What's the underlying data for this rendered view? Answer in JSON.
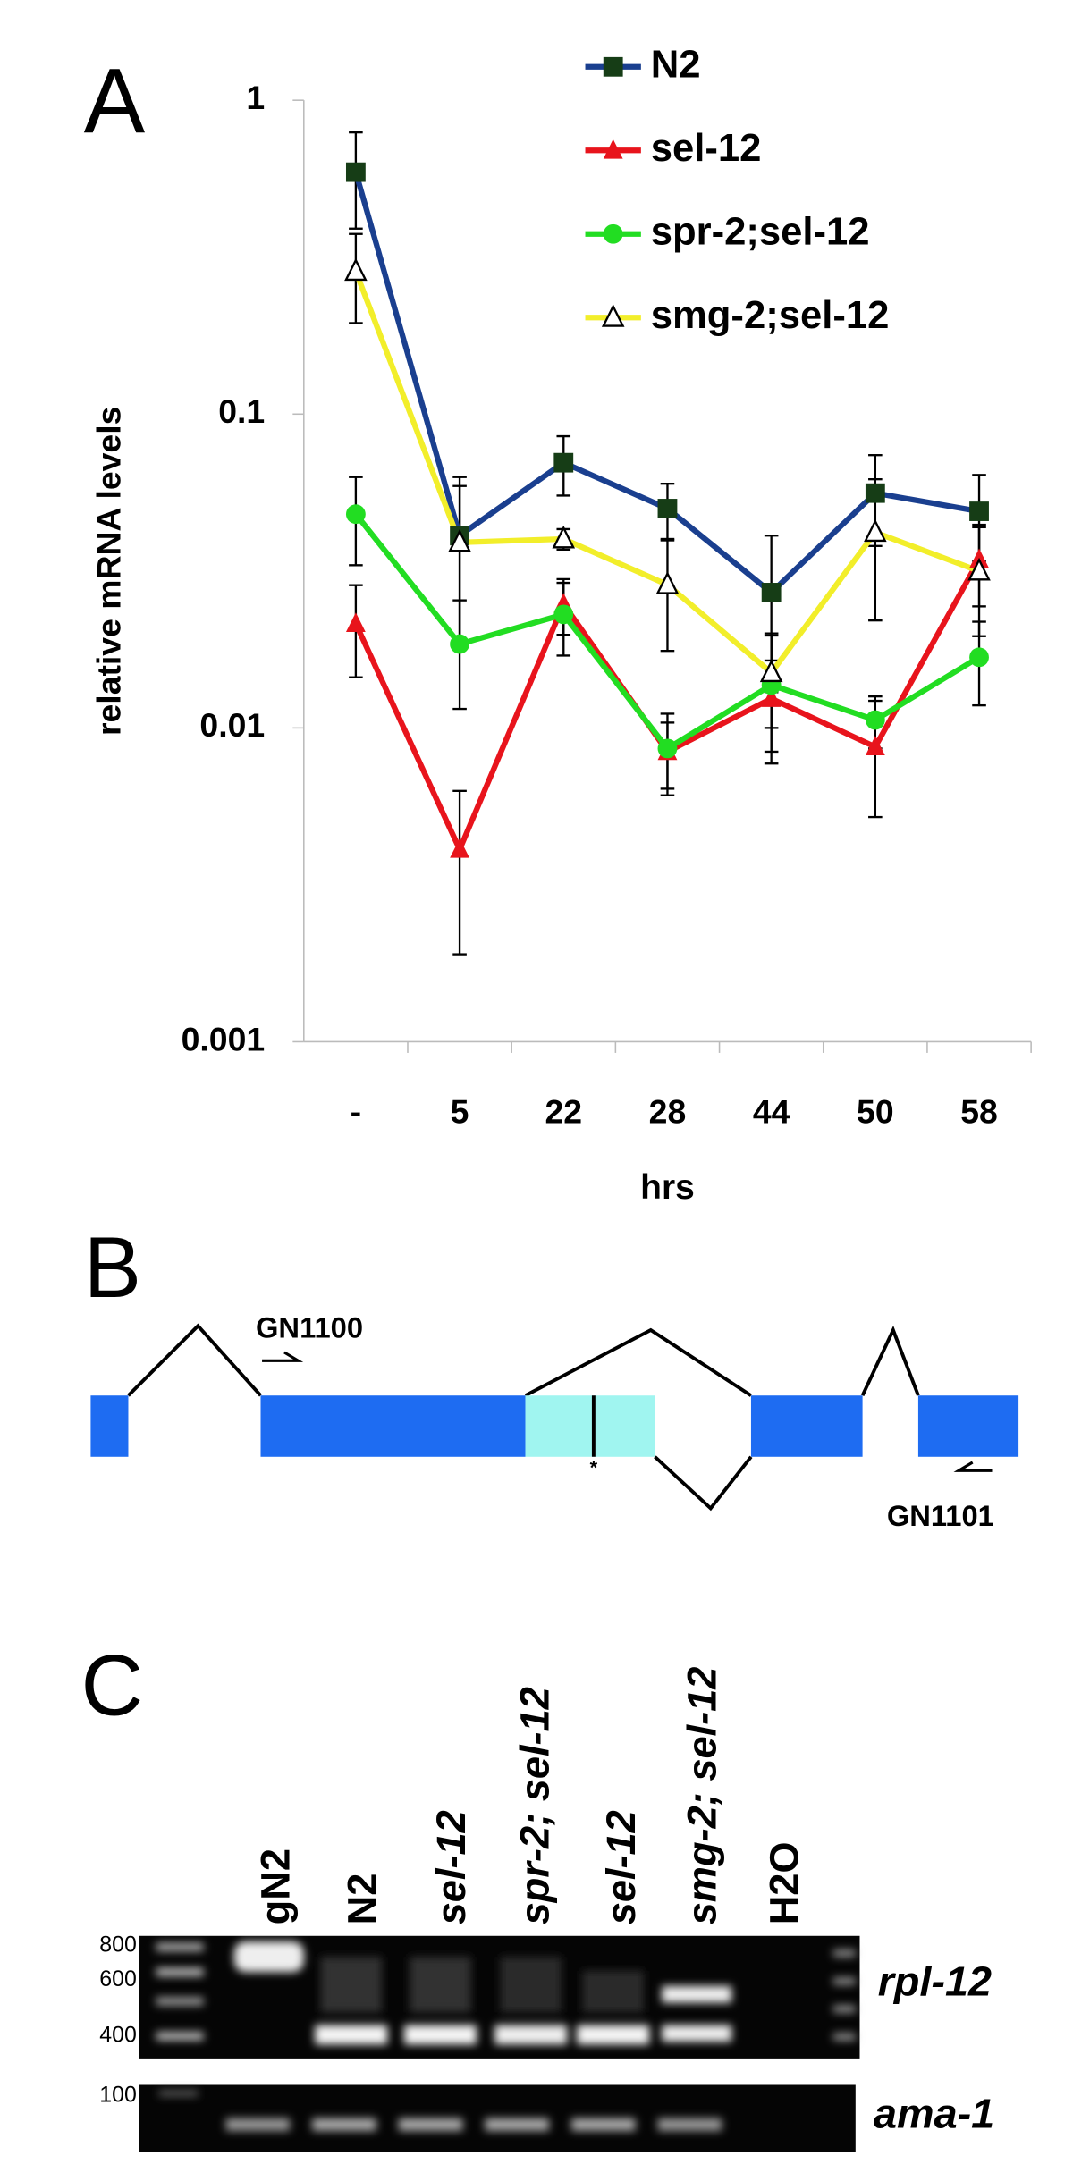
{
  "panel_labels": [
    "A",
    "B",
    "C"
  ],
  "chart_data": {
    "type": "line",
    "y_label": "relative mRNA levels",
    "x_label": "hrs",
    "categories": [
      "-",
      "5",
      "22",
      "28",
      "44",
      "50",
      "58"
    ],
    "log_y": true,
    "ylim": [
      0.001,
      1
    ],
    "yticks": [
      0.001,
      0.01,
      0.1,
      1
    ],
    "series": [
      {
        "name": "N2",
        "color": "#1a3f8f",
        "marker": "square",
        "marker_color": "#163d16",
        "values": [
          0.59,
          0.041,
          0.07,
          0.05,
          0.027,
          0.056,
          0.049
        ],
        "errors": [
          0.2,
          0.022,
          0.015,
          0.01,
          0.014,
          0.018,
          0.015
        ]
      },
      {
        "name": "sel-12",
        "color": "#e8141c",
        "marker": "triangle",
        "marker_color": "#e8141c",
        "values": [
          0.0215,
          0.0041,
          0.0248,
          0.0084,
          0.0124,
          0.0087,
          0.0344
        ],
        "errors": [
          0.007,
          0.0022,
          0.005,
          0.002,
          0.004,
          0.0035,
          0.01
        ]
      },
      {
        "name": "spr-2;sel-12",
        "color": "#22dd22",
        "marker": "circle",
        "marker_color": "#22dd22",
        "values": [
          0.048,
          0.0185,
          0.023,
          0.0086,
          0.0137,
          0.0106,
          0.0168
        ],
        "errors": [
          0.015,
          0.007,
          0.006,
          0.0025,
          0.006,
          0.002,
          0.005
        ]
      },
      {
        "name": "smg-2;sel-12",
        "color": "#f2ee2a",
        "marker": "open-triangle",
        "marker_color": "#ffffff",
        "values": [
          0.285,
          0.039,
          0.04,
          0.0286,
          0.015,
          0.042,
          0.0316
        ],
        "errors": [
          0.09,
          0.02,
          0.003,
          0.011,
          0.005,
          0.02,
          0.012
        ]
      }
    ]
  },
  "diagram": {
    "primer_forward": "GN1100",
    "primer_reverse": "GN1101",
    "mutation_mark": "*"
  },
  "gel": {
    "lanes": [
      "gN2",
      "N2",
      "sel-12",
      "spr-2; sel-12",
      "sel-12",
      "smg-2; sel-12",
      "H2O"
    ],
    "size_markers_top": [
      "800",
      "600",
      "400"
    ],
    "size_marker_bottom": "100",
    "genes": [
      "rpl-12",
      "ama-1"
    ]
  }
}
